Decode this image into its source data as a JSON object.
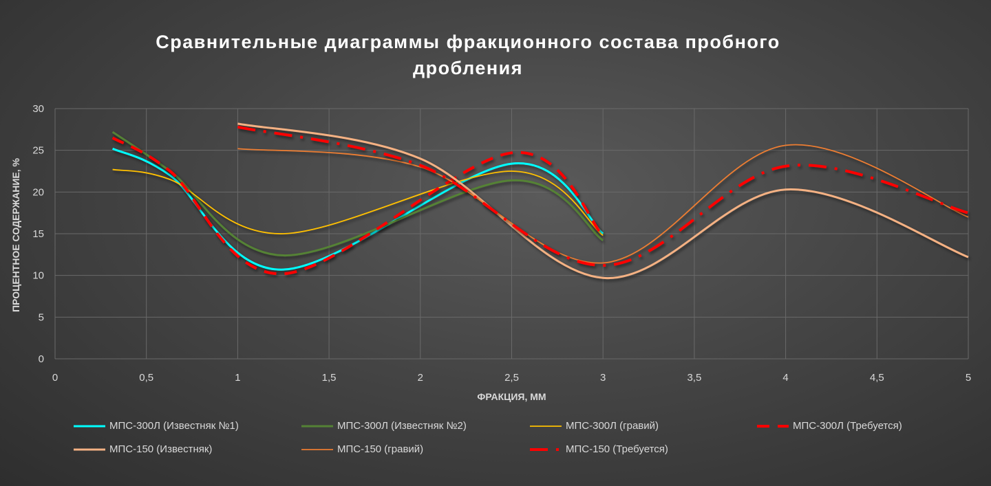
{
  "chart_data": {
    "type": "line",
    "title_lines": [
      "Сравнительные  диаграммы фракционного состава пробного",
      "дробления"
    ],
    "xlabel": "ФРАКЦИЯ, ММ",
    "ylabel": "ПРОЦЕНТНОЕ СОДЕРЖАНИЕ, %",
    "xlim": [
      0,
      5
    ],
    "ylim": [
      0,
      30
    ],
    "xticks": [
      "0",
      "0,5",
      "1",
      "1,5",
      "2",
      "2,5",
      "3",
      "3,5",
      "4",
      "4,5",
      "5"
    ],
    "xtick_values": [
      0,
      0.5,
      1,
      1.5,
      2,
      2.5,
      3,
      3.5,
      4,
      4.5,
      5
    ],
    "yticks": [
      0,
      5,
      10,
      15,
      20,
      25,
      30
    ],
    "grid": true,
    "legend_position": "bottom",
    "series": [
      {
        "name": "МПС-300Л (Известняк №1)",
        "color": "#00FFFF",
        "style": "solid",
        "width": 3,
        "x": [
          0.315,
          0.63,
          1.25,
          2.5,
          3
        ],
        "y": [
          25.2,
          22,
          10.7,
          23.4,
          15
        ]
      },
      {
        "name": "МПС-300Л (Известняк №2)",
        "color": "#548235",
        "style": "solid",
        "width": 3,
        "x": [
          0.315,
          0.63,
          1.25,
          2.5,
          3
        ],
        "y": [
          27.2,
          22.5,
          12.4,
          21.4,
          14.2
        ]
      },
      {
        "name": "МПС-300Л (гравий)",
        "color": "#FFC000",
        "style": "solid",
        "width": 1.8,
        "x": [
          0.315,
          0.63,
          1.25,
          2.5,
          3
        ],
        "y": [
          22.7,
          21.5,
          15,
          22.5,
          14.8
        ]
      },
      {
        "name": "МПС-300Л (Требуется)",
        "color": "#FF0000",
        "style": "dash",
        "width": 4,
        "x": [
          0.315,
          0.63,
          1.25,
          2.5,
          3
        ],
        "y": [
          26.5,
          22.5,
          10.2,
          24.7,
          14.8
        ]
      },
      {
        "name": "МПС-150 (Известняк)",
        "color": "#F4B183",
        "style": "solid",
        "width": 3,
        "x": [
          1,
          2,
          3,
          4,
          5
        ],
        "y": [
          28.2,
          24,
          9.7,
          20.3,
          12.2
        ]
      },
      {
        "name": "МПС-150 (гравий)",
        "color": "#ED7D31",
        "style": "solid",
        "width": 1.8,
        "x": [
          1,
          2,
          3,
          4,
          5
        ],
        "y": [
          25.2,
          23,
          11.5,
          25.6,
          17
        ]
      },
      {
        "name": "МПС-150 (Требуется)",
        "color": "#FF0000",
        "style": "dashdot",
        "width": 4,
        "x": [
          1,
          2,
          3,
          4,
          5
        ],
        "y": [
          27.8,
          23.2,
          11.2,
          23.1,
          17.5
        ]
      }
    ]
  }
}
